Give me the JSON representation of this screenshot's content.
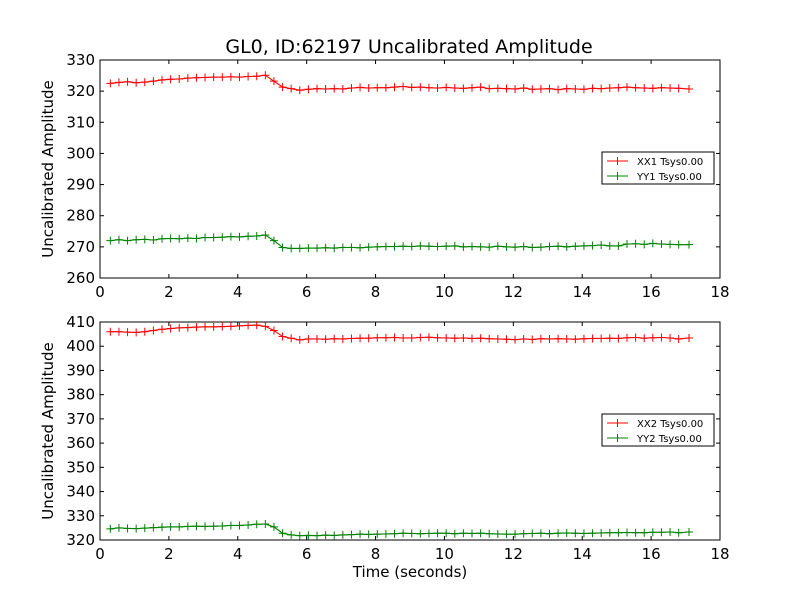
{
  "title": "GL0, ID:62197 Uncalibrated Amplitude",
  "colors": {
    "xx": "#ff0000",
    "yy": "#008000",
    "axes": "#000000",
    "background": "#ffffff"
  },
  "chart_data": [
    {
      "type": "line",
      "title": "GL0, ID:62197 Uncalibrated Amplitude",
      "xlabel": "",
      "ylabel": "Uncalibrated Amplitude",
      "xlim": [
        0,
        18
      ],
      "ylim": [
        260,
        330
      ],
      "xticks": [
        0,
        2,
        4,
        6,
        8,
        10,
        12,
        14,
        16,
        18
      ],
      "yticks": [
        260,
        270,
        280,
        290,
        300,
        310,
        320,
        330
      ],
      "grid": false,
      "legend_position": "center-right",
      "marker": "+",
      "x": [
        0.3,
        0.55,
        0.8,
        1.05,
        1.3,
        1.55,
        1.8,
        2.05,
        2.3,
        2.55,
        2.8,
        3.05,
        3.3,
        3.55,
        3.8,
        4.05,
        4.3,
        4.55,
        4.8,
        5.05,
        5.3,
        5.55,
        5.8,
        6.05,
        6.3,
        6.55,
        6.8,
        7.05,
        7.3,
        7.55,
        7.8,
        8.05,
        8.3,
        8.55,
        8.8,
        9.05,
        9.3,
        9.55,
        9.8,
        10.05,
        10.3,
        10.55,
        10.8,
        11.05,
        11.3,
        11.55,
        11.8,
        12.05,
        12.3,
        12.55,
        12.8,
        13.05,
        13.3,
        13.55,
        13.8,
        14.05,
        14.3,
        14.55,
        14.8,
        15.05,
        15.3,
        15.55,
        15.8,
        16.05,
        16.3,
        16.55,
        16.8,
        17.1
      ],
      "series": [
        {
          "name": "XX1 Tsys0.00",
          "color": "#ff0000",
          "values": [
            322.5,
            322.8,
            323.0,
            322.7,
            322.9,
            323.2,
            323.6,
            323.8,
            323.9,
            324.2,
            324.3,
            324.4,
            324.5,
            324.5,
            324.6,
            324.5,
            324.7,
            324.8,
            325.1,
            323.2,
            321.3,
            320.8,
            320.3,
            320.6,
            320.8,
            320.7,
            320.8,
            320.7,
            321.0,
            321.2,
            321.0,
            321.1,
            321.1,
            321.3,
            321.5,
            321.2,
            321.3,
            321.1,
            321.0,
            321.2,
            321.0,
            320.9,
            321.1,
            321.3,
            320.8,
            320.9,
            320.8,
            320.7,
            321.0,
            320.6,
            320.7,
            320.8,
            320.5,
            320.8,
            320.7,
            320.6,
            320.9,
            320.8,
            321.0,
            321.1,
            321.3,
            321.1,
            321.0,
            320.9,
            321.1,
            321.0,
            320.9,
            320.7
          ]
        },
        {
          "name": "YY1 Tsys0.00",
          "color": "#008000",
          "values": [
            272.0,
            272.3,
            272.0,
            272.3,
            272.4,
            272.2,
            272.6,
            272.7,
            272.6,
            272.8,
            272.7,
            273.0,
            273.0,
            273.1,
            273.3,
            273.2,
            273.4,
            273.5,
            273.8,
            272.0,
            269.8,
            269.5,
            269.5,
            269.6,
            269.6,
            269.7,
            269.6,
            269.8,
            269.8,
            269.7,
            269.9,
            270.0,
            270.1,
            270.1,
            270.2,
            270.1,
            270.3,
            270.2,
            270.1,
            270.2,
            270.3,
            270.0,
            270.1,
            270.0,
            269.9,
            270.2,
            270.0,
            269.9,
            270.1,
            269.8,
            269.9,
            270.1,
            270.2,
            270.0,
            270.2,
            270.3,
            270.4,
            270.6,
            270.3,
            270.3,
            270.9,
            271.0,
            270.8,
            271.1,
            270.9,
            270.8,
            270.7,
            270.7
          ]
        }
      ]
    },
    {
      "type": "line",
      "title": "",
      "xlabel": "Time (seconds)",
      "ylabel": "Uncalibrated Amplitude",
      "xlim": [
        0,
        18
      ],
      "ylim": [
        320,
        410
      ],
      "xticks": [
        0,
        2,
        4,
        6,
        8,
        10,
        12,
        14,
        16,
        18
      ],
      "yticks": [
        320,
        330,
        340,
        350,
        360,
        370,
        380,
        390,
        400,
        410
      ],
      "grid": false,
      "legend_position": "center-right",
      "marker": "+",
      "x": [
        0.3,
        0.55,
        0.8,
        1.05,
        1.3,
        1.55,
        1.8,
        2.05,
        2.3,
        2.55,
        2.8,
        3.05,
        3.3,
        3.55,
        3.8,
        4.05,
        4.3,
        4.55,
        4.8,
        5.05,
        5.3,
        5.55,
        5.8,
        6.05,
        6.3,
        6.55,
        6.8,
        7.05,
        7.3,
        7.55,
        7.8,
        8.05,
        8.3,
        8.55,
        8.8,
        9.05,
        9.3,
        9.55,
        9.8,
        10.05,
        10.3,
        10.55,
        10.8,
        11.05,
        11.3,
        11.55,
        11.8,
        12.05,
        12.3,
        12.55,
        12.8,
        13.05,
        13.3,
        13.55,
        13.8,
        14.05,
        14.3,
        14.55,
        14.8,
        15.05,
        15.3,
        15.55,
        15.8,
        16.05,
        16.3,
        16.55,
        16.8,
        17.1
      ],
      "series": [
        {
          "name": "XX2 Tsys0.00",
          "color": "#ff0000",
          "values": [
            406.0,
            406.0,
            405.8,
            405.7,
            406.0,
            406.5,
            407.0,
            407.3,
            407.6,
            407.7,
            407.9,
            408.0,
            408.0,
            408.1,
            408.2,
            408.4,
            408.6,
            408.7,
            408.2,
            406.5,
            404.0,
            403.3,
            402.6,
            403.0,
            403.0,
            402.9,
            403.1,
            403.0,
            403.2,
            403.3,
            403.3,
            403.5,
            403.5,
            403.6,
            403.4,
            403.4,
            403.6,
            403.7,
            403.5,
            403.4,
            403.3,
            403.4,
            403.2,
            403.3,
            403.1,
            403.0,
            402.9,
            402.7,
            403.0,
            402.8,
            403.1,
            403.0,
            403.1,
            403.0,
            402.9,
            403.1,
            403.2,
            403.2,
            403.3,
            403.2,
            403.5,
            403.6,
            403.3,
            403.5,
            403.6,
            403.4,
            403.0,
            403.4
          ]
        },
        {
          "name": "YY2 Tsys0.00",
          "color": "#008000",
          "values": [
            324.6,
            325.0,
            324.8,
            324.7,
            324.9,
            325.1,
            325.3,
            325.4,
            325.4,
            325.6,
            325.7,
            325.6,
            325.7,
            325.8,
            326.0,
            326.0,
            326.2,
            326.5,
            326.6,
            325.4,
            322.8,
            322.1,
            321.8,
            321.9,
            321.8,
            322.0,
            321.9,
            322.1,
            322.2,
            322.4,
            322.3,
            322.4,
            322.5,
            322.6,
            322.8,
            322.7,
            322.6,
            322.7,
            322.8,
            322.8,
            322.6,
            322.8,
            322.7,
            322.8,
            322.6,
            322.5,
            322.4,
            322.4,
            322.6,
            322.7,
            322.8,
            322.6,
            322.8,
            322.9,
            322.8,
            322.7,
            322.8,
            322.9,
            323.0,
            323.0,
            323.1,
            323.0,
            323.0,
            323.2,
            323.2,
            323.3,
            323.0,
            323.3
          ]
        }
      ]
    }
  ]
}
